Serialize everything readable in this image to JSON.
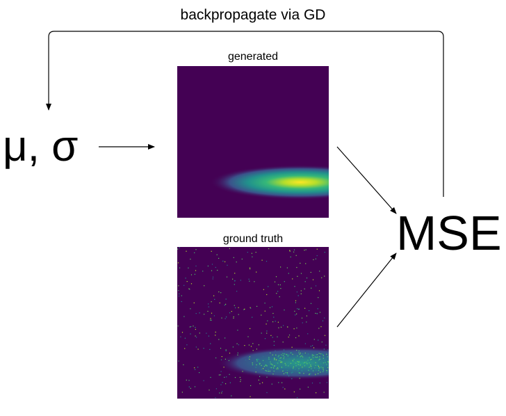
{
  "feedback_label": "backpropagate via GD",
  "params_label": "μ, σ",
  "loss_label": "MSE",
  "generated_title": "generated",
  "ground_truth_title": "ground truth",
  "colors": {
    "background": "#440154",
    "blob_mid": "#21918c",
    "blob_peak": "#fde725",
    "arrow": "#000000"
  }
}
